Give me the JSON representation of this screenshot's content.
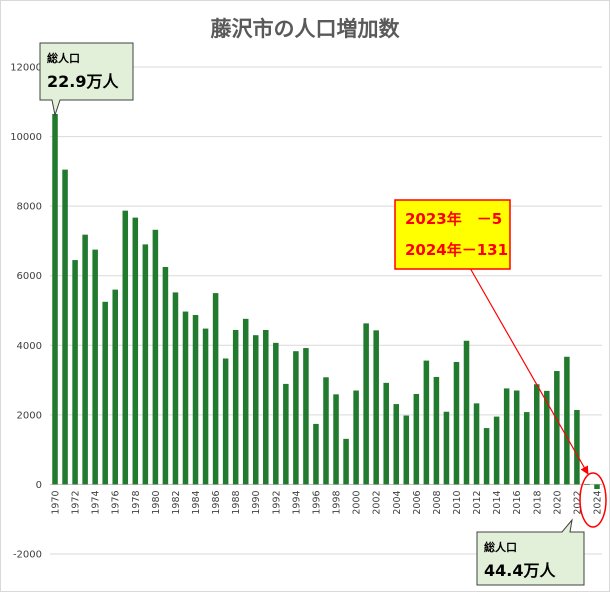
{
  "chart_data": {
    "type": "bar",
    "title": "藤沢市の人口増加数",
    "xlabel": "",
    "ylabel": "",
    "ylim": [
      -2000,
      12000
    ],
    "yticks": [
      -2000,
      0,
      2000,
      4000,
      6000,
      8000,
      10000,
      12000
    ],
    "grid": true,
    "color": "#217a2e",
    "categories": [
      "1970",
      "1971",
      "1972",
      "1973",
      "1974",
      "1975",
      "1976",
      "1977",
      "1978",
      "1979",
      "1980",
      "1981",
      "1982",
      "1983",
      "1984",
      "1985",
      "1986",
      "1987",
      "1988",
      "1989",
      "1990",
      "1991",
      "1992",
      "1993",
      "1994",
      "1995",
      "1996",
      "1997",
      "1998",
      "1999",
      "2000",
      "2001",
      "2002",
      "2003",
      "2004",
      "2005",
      "2006",
      "2007",
      "2008",
      "2009",
      "2010",
      "2011",
      "2012",
      "2013",
      "2014",
      "2015",
      "2016",
      "2017",
      "2018",
      "2019",
      "2020",
      "2021",
      "2022",
      "2023",
      "2024"
    ],
    "tick_labels": [
      "1970",
      "1972",
      "1974",
      "1976",
      "1978",
      "1980",
      "1982",
      "1984",
      "1986",
      "1988",
      "1990",
      "1992",
      "1994",
      "1996",
      "1998",
      "2000",
      "2002",
      "2004",
      "2006",
      "2008",
      "2010",
      "2012",
      "2014",
      "2016",
      "2018",
      "2020",
      "2022",
      "2024"
    ],
    "values": [
      10650,
      9050,
      6450,
      7180,
      6750,
      5250,
      5600,
      7870,
      7670,
      6900,
      7320,
      6250,
      5520,
      4970,
      4870,
      4480,
      5500,
      3620,
      4440,
      4760,
      4290,
      4440,
      4070,
      2890,
      3830,
      3920,
      1740,
      3080,
      2590,
      1310,
      2700,
      4630,
      4430,
      2920,
      2310,
      1980,
      2600,
      3560,
      3090,
      2090,
      3520,
      4130,
      2330,
      1620,
      1950,
      2760,
      2700,
      2080,
      2880,
      2690,
      3260,
      3670,
      2140,
      -5,
      -131
    ],
    "annotations": {
      "start": {
        "label": "総人口",
        "value": "22.9万人"
      },
      "end": {
        "label": "総人口",
        "value": "44.4万人"
      },
      "highlight": {
        "line1": "2023年　－5",
        "line2": "2024年－131"
      }
    }
  }
}
